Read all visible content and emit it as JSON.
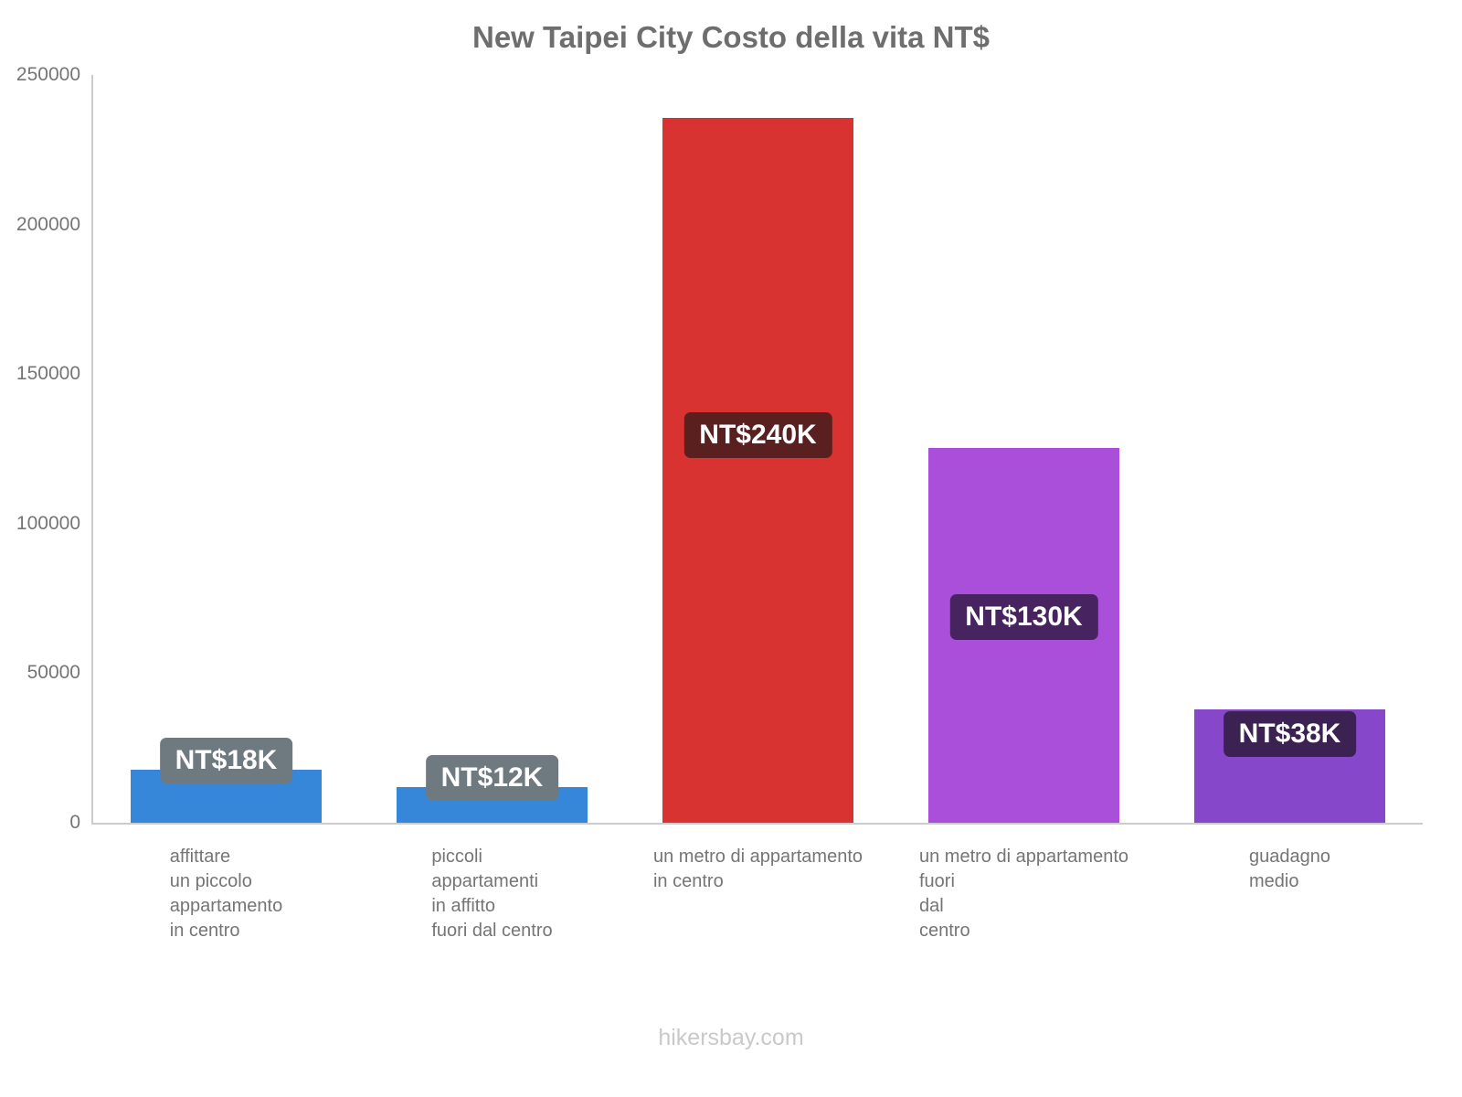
{
  "title": "New Taipei City Costo della vita NT$",
  "footer": "hikersbay.com",
  "chart_data": {
    "type": "bar",
    "title": "New Taipei City Costo della vita NT$",
    "xlabel": "",
    "ylabel": "",
    "ylim": [
      0,
      250000
    ],
    "yticks": [
      0,
      50000,
      100000,
      150000,
      200000,
      250000
    ],
    "grid": false,
    "legend": false,
    "categories": [
      "affittare un piccolo appartamento in centro",
      "piccoli appartamenti in affitto fuori dal centro",
      "un metro di appartamento in centro",
      "un metro di appartamento fuori dal centro",
      "guadagno medio"
    ],
    "category_lines": [
      [
        "affittare",
        "un piccolo",
        "appartamento",
        "in centro"
      ],
      [
        "piccoli",
        "appartamenti",
        "in affitto",
        "fuori dal centro"
      ],
      [
        "un metro di appartamento",
        "in centro"
      ],
      [
        "un metro di appartamento",
        "fuori",
        "dal",
        "centro"
      ],
      [
        "guadagno",
        "medio"
      ]
    ],
    "series": [
      {
        "name": "Costo della vita NT$",
        "values": [
          17700,
          11900,
          235600,
          125300,
          37900
        ]
      }
    ],
    "bar_value_labels": [
      "NT$18K",
      "NT$12K",
      "NT$240K",
      "NT$130K",
      "NT$38K"
    ],
    "bar_colors": [
      "#3687d9",
      "#3687d9",
      "#d93331",
      "#a94fd9",
      "#8747cb"
    ],
    "value_label_bg_colors": [
      "#6e7a80",
      "#6e7a80",
      "#5a1f1f",
      "#47235f",
      "#3c2153"
    ],
    "value_label_text_color": "#ffffff",
    "axis_color": "#cccccc",
    "tick_text_color": "#757575",
    "title_color": "#6e6e6e",
    "footer_color": "#c9c9c9"
  }
}
